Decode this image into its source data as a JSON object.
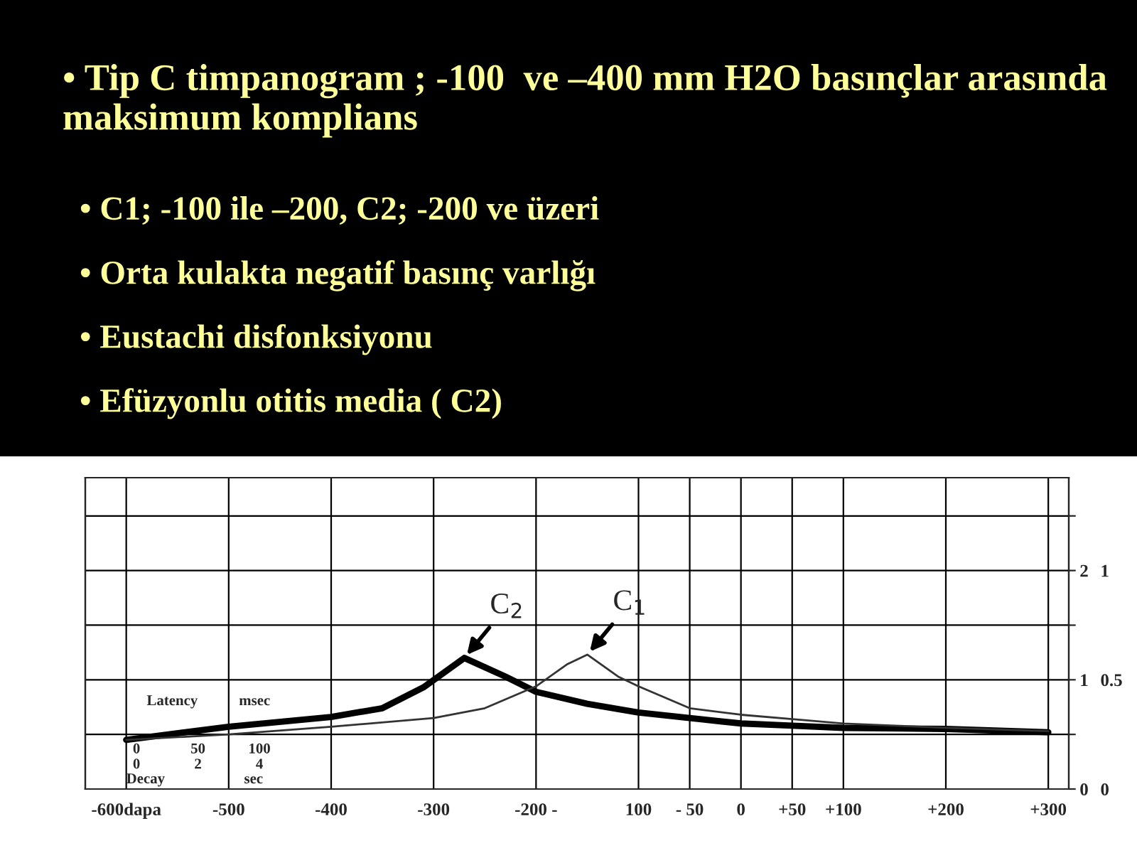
{
  "chart_data": {
    "type": "line",
    "title": "• Tip C timpanogram ; -100  ve –400 mm H2O basınçlar arasında maksimum komplians",
    "annotations": [
      "• C1; -100 ile –200, C2; -200 ve üzeri",
      "• Orta kulakta negatif basınç varlığı",
      "• Eustachi disfonksiyonu",
      "• Efüzyonlu otitis media ( C2)",
      "Latency",
      "msec",
      "0",
      "50",
      "100",
      "0",
      "2",
      "4",
      "Decay",
      "sec"
    ],
    "x": [
      -600,
      -500,
      -400,
      -350,
      -310,
      -270,
      -230,
      -200,
      -150,
      -100,
      -50,
      0,
      50,
      100,
      200,
      300
    ],
    "series": [
      {
        "name": "C$_{2}$",
        "color": "#000000",
        "values": [
          0.45,
          0.57,
          0.66,
          0.74,
          0.93,
          1.2,
          1.03,
          0.89,
          0.78,
          0.7,
          0.65,
          0.6,
          0.58,
          0.56,
          0.55,
          0.52
        ]
      },
      {
        "name": "C$_{1}$",
        "color": "#333333",
        "x": [
          -600,
          -500,
          -400,
          -300,
          -250,
          -200,
          -170,
          -150,
          -120,
          -100,
          -50,
          0,
          50,
          100,
          200,
          300
        ],
        "values": [
          0.45,
          0.5,
          0.57,
          0.65,
          0.74,
          0.94,
          1.14,
          1.23,
          1.03,
          0.94,
          0.74,
          0.68,
          0.64,
          0.6,
          0.56,
          0.53
        ]
      }
    ],
    "xlim": [
      -640,
      320
    ],
    "xticks": [
      {
        "value": -600,
        "label": "-600dapa"
      },
      -500,
      -400,
      -300,
      {
        "value": -200,
        "label": "-200 -"
      },
      {
        "value": -100,
        "label": "100"
      },
      {
        "value": -50,
        "label": "- 50"
      },
      0,
      {
        "value": 50,
        "label": "+50"
      },
      {
        "value": 100,
        "label": "+100"
      },
      {
        "value": 200,
        "label": "+200"
      },
      {
        "value": 300,
        "label": "+300"
      }
    ],
    "ylim": [
      0,
      2.85
    ],
    "yticks": [
      0,
      {
        "value": 0.5,
        "label": null
      },
      1,
      {
        "value": 1.5,
        "label": null
      },
      2,
      {
        "value": 2.5,
        "label": null
      }
    ],
    "y2lim": [
      0,
      1.425
    ],
    "y2ticks": [
      0,
      0.5,
      1
    ],
    "grid": true
  }
}
